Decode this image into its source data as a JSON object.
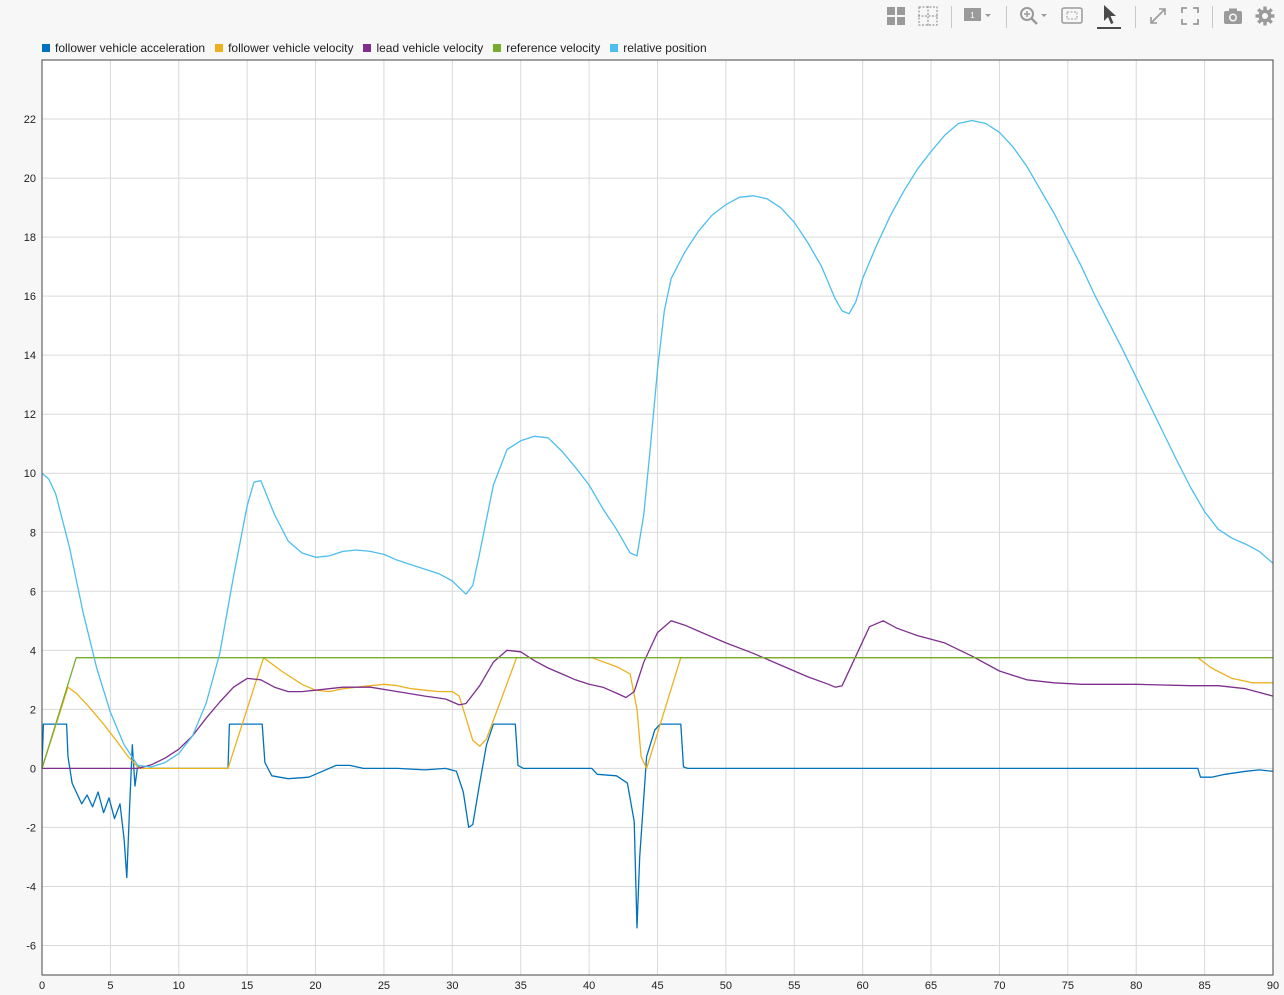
{
  "toolbar": {
    "buttons": [
      {
        "name": "layout-grid-icon"
      },
      {
        "name": "cursor-grid-icon"
      },
      {
        "name": "data-tips-menu-icon",
        "badge": "1"
      },
      {
        "name": "zoom-menu-icon"
      },
      {
        "name": "fit-to-view-icon"
      },
      {
        "name": "select-pointer-icon",
        "active": true
      },
      {
        "name": "expand-arrows-icon"
      },
      {
        "name": "fullscreen-icon"
      },
      {
        "name": "snapshot-camera-icon"
      },
      {
        "name": "settings-gear-icon"
      }
    ]
  },
  "chart_data": {
    "type": "line",
    "title": "",
    "xlabel": "",
    "ylabel": "",
    "xlim": [
      0,
      90
    ],
    "ylim": [
      -7,
      24
    ],
    "xticks": [
      0,
      5,
      10,
      15,
      20,
      25,
      30,
      35,
      40,
      45,
      50,
      55,
      60,
      65,
      70,
      75,
      80,
      85,
      90
    ],
    "yticks": [
      -6,
      -4,
      -2,
      0,
      2,
      4,
      6,
      8,
      10,
      12,
      14,
      16,
      18,
      20,
      22
    ],
    "grid": true,
    "legend_position": "top-left",
    "series": [
      {
        "name": "follower vehicle acceleration",
        "color": "#0072bd",
        "points": [
          [
            0,
            0
          ],
          [
            0.1,
            1.5
          ],
          [
            1.8,
            1.5
          ],
          [
            1.9,
            0.4
          ],
          [
            2.2,
            -0.5
          ],
          [
            2.5,
            -0.8
          ],
          [
            2.9,
            -1.2
          ],
          [
            3.3,
            -0.9
          ],
          [
            3.7,
            -1.3
          ],
          [
            4.1,
            -0.8
          ],
          [
            4.5,
            -1.5
          ],
          [
            4.9,
            -1.0
          ],
          [
            5.3,
            -1.7
          ],
          [
            5.7,
            -1.2
          ],
          [
            6.0,
            -2.4
          ],
          [
            6.2,
            -3.7
          ],
          [
            6.4,
            -1.4
          ],
          [
            6.6,
            0.8
          ],
          [
            6.8,
            -0.6
          ],
          [
            7.0,
            0.1
          ],
          [
            7.2,
            0
          ],
          [
            13.6,
            0
          ],
          [
            13.7,
            1.5
          ],
          [
            16.1,
            1.5
          ],
          [
            16.3,
            0.2
          ],
          [
            16.8,
            -0.25
          ],
          [
            18.0,
            -0.35
          ],
          [
            19.5,
            -0.3
          ],
          [
            20.5,
            -0.1
          ],
          [
            21.5,
            0.1
          ],
          [
            22.5,
            0.1
          ],
          [
            23.5,
            0.0
          ],
          [
            26,
            0.0
          ],
          [
            28,
            -0.05
          ],
          [
            29.5,
            0.0
          ],
          [
            30.3,
            -0.1
          ],
          [
            30.8,
            -0.8
          ],
          [
            31.2,
            -2.0
          ],
          [
            31.5,
            -1.9
          ],
          [
            32.0,
            -0.5
          ],
          [
            32.5,
            0.8
          ],
          [
            33.0,
            1.5
          ],
          [
            34.6,
            1.5
          ],
          [
            34.8,
            0.1
          ],
          [
            35.2,
            0
          ],
          [
            40.2,
            0
          ],
          [
            40.6,
            -0.2
          ],
          [
            42.0,
            -0.25
          ],
          [
            42.8,
            -0.5
          ],
          [
            43.3,
            -1.8
          ],
          [
            43.5,
            -5.4
          ],
          [
            43.7,
            -3.0
          ],
          [
            44.2,
            0.4
          ],
          [
            44.8,
            1.3
          ],
          [
            45.2,
            1.5
          ],
          [
            46.7,
            1.5
          ],
          [
            46.9,
            0.05
          ],
          [
            47.2,
            0
          ],
          [
            84.5,
            0
          ],
          [
            84.7,
            -0.3
          ],
          [
            85.5,
            -0.3
          ],
          [
            86.5,
            -0.2
          ],
          [
            88,
            -0.1
          ],
          [
            89,
            -0.05
          ],
          [
            90,
            -0.1
          ]
        ]
      },
      {
        "name": "follower vehicle velocity",
        "color": "#edb120",
        "points": [
          [
            0,
            0
          ],
          [
            1.9,
            2.75
          ],
          [
            2.5,
            2.55
          ],
          [
            3.5,
            2.05
          ],
          [
            4.5,
            1.5
          ],
          [
            5.5,
            0.9
          ],
          [
            6.3,
            0.4
          ],
          [
            7.0,
            0.05
          ],
          [
            7.3,
            0
          ],
          [
            13.6,
            0
          ],
          [
            16.2,
            3.75
          ],
          [
            17.5,
            3.3
          ],
          [
            19,
            2.85
          ],
          [
            20,
            2.65
          ],
          [
            21,
            2.6
          ],
          [
            22,
            2.7
          ],
          [
            23,
            2.75
          ],
          [
            24,
            2.8
          ],
          [
            25,
            2.85
          ],
          [
            26,
            2.8
          ],
          [
            27,
            2.7
          ],
          [
            28,
            2.65
          ],
          [
            29,
            2.6
          ],
          [
            30,
            2.6
          ],
          [
            30.5,
            2.45
          ],
          [
            31,
            1.7
          ],
          [
            31.5,
            0.95
          ],
          [
            32,
            0.75
          ],
          [
            32.5,
            1.0
          ],
          [
            34.7,
            3.75
          ],
          [
            40.2,
            3.75
          ],
          [
            42,
            3.45
          ],
          [
            43,
            3.2
          ],
          [
            43.5,
            2.0
          ],
          [
            43.8,
            0.4
          ],
          [
            44.2,
            0.0
          ],
          [
            46.7,
            3.75
          ],
          [
            84.5,
            3.75
          ],
          [
            85.5,
            3.4
          ],
          [
            87,
            3.05
          ],
          [
            88.5,
            2.9
          ],
          [
            90,
            2.9
          ]
        ]
      },
      {
        "name": "lead vehicle velocity",
        "color": "#7e2f8e",
        "points": [
          [
            0,
            0
          ],
          [
            7,
            0
          ],
          [
            8,
            0.12
          ],
          [
            9,
            0.35
          ],
          [
            10,
            0.65
          ],
          [
            11,
            1.1
          ],
          [
            12,
            1.7
          ],
          [
            13,
            2.25
          ],
          [
            14,
            2.75
          ],
          [
            15,
            3.05
          ],
          [
            16,
            3.0
          ],
          [
            17,
            2.75
          ],
          [
            18,
            2.6
          ],
          [
            19,
            2.6
          ],
          [
            20,
            2.65
          ],
          [
            21,
            2.7
          ],
          [
            22,
            2.75
          ],
          [
            24,
            2.75
          ],
          [
            26,
            2.6
          ],
          [
            28,
            2.45
          ],
          [
            29.5,
            2.35
          ],
          [
            30.5,
            2.15
          ],
          [
            31,
            2.2
          ],
          [
            32,
            2.8
          ],
          [
            33,
            3.6
          ],
          [
            34,
            4.0
          ],
          [
            35,
            3.95
          ],
          [
            36,
            3.65
          ],
          [
            37,
            3.4
          ],
          [
            38,
            3.2
          ],
          [
            39,
            3.0
          ],
          [
            40,
            2.85
          ],
          [
            41,
            2.75
          ],
          [
            42,
            2.55
          ],
          [
            42.7,
            2.4
          ],
          [
            43.3,
            2.6
          ],
          [
            44,
            3.6
          ],
          [
            45,
            4.6
          ],
          [
            46,
            5.0
          ],
          [
            47,
            4.85
          ],
          [
            48,
            4.65
          ],
          [
            50,
            4.25
          ],
          [
            52,
            3.9
          ],
          [
            54,
            3.5
          ],
          [
            56,
            3.1
          ],
          [
            57.5,
            2.85
          ],
          [
            58,
            2.75
          ],
          [
            58.5,
            2.8
          ],
          [
            59.5,
            3.8
          ],
          [
            60.5,
            4.8
          ],
          [
            61.5,
            5.0
          ],
          [
            62.5,
            4.75
          ],
          [
            64,
            4.5
          ],
          [
            66,
            4.25
          ],
          [
            68,
            3.8
          ],
          [
            70,
            3.3
          ],
          [
            72,
            3.0
          ],
          [
            74,
            2.9
          ],
          [
            76,
            2.85
          ],
          [
            80,
            2.85
          ],
          [
            84,
            2.8
          ],
          [
            86,
            2.8
          ],
          [
            88,
            2.7
          ],
          [
            90,
            2.45
          ]
        ]
      },
      {
        "name": "reference velocity",
        "color": "#77ac30",
        "points": [
          [
            0,
            0
          ],
          [
            2.5,
            3.75
          ],
          [
            90,
            3.75
          ]
        ]
      },
      {
        "name": "relative position",
        "color": "#4dbeee",
        "points": [
          [
            0,
            10.0
          ],
          [
            0.5,
            9.8
          ],
          [
            1,
            9.3
          ],
          [
            2,
            7.5
          ],
          [
            3,
            5.3
          ],
          [
            4,
            3.4
          ],
          [
            5,
            1.9
          ],
          [
            6,
            0.8
          ],
          [
            7,
            0.1
          ],
          [
            8,
            0.05
          ],
          [
            9,
            0.2
          ],
          [
            10,
            0.5
          ],
          [
            11,
            1.1
          ],
          [
            12,
            2.2
          ],
          [
            13,
            3.9
          ],
          [
            14,
            6.5
          ],
          [
            15,
            8.9
          ],
          [
            15.5,
            9.7
          ],
          [
            16,
            9.75
          ],
          [
            17,
            8.6
          ],
          [
            18,
            7.7
          ],
          [
            19,
            7.3
          ],
          [
            20,
            7.15
          ],
          [
            21,
            7.2
          ],
          [
            22,
            7.35
          ],
          [
            23,
            7.4
          ],
          [
            24,
            7.35
          ],
          [
            25,
            7.25
          ],
          [
            26,
            7.05
          ],
          [
            27,
            6.9
          ],
          [
            28,
            6.75
          ],
          [
            29,
            6.6
          ],
          [
            30,
            6.35
          ],
          [
            31,
            5.9
          ],
          [
            31.5,
            6.2
          ],
          [
            32,
            7.3
          ],
          [
            33,
            9.6
          ],
          [
            34,
            10.8
          ],
          [
            35,
            11.1
          ],
          [
            36,
            11.25
          ],
          [
            37,
            11.2
          ],
          [
            38,
            10.75
          ],
          [
            39,
            10.2
          ],
          [
            40,
            9.6
          ],
          [
            41,
            8.8
          ],
          [
            42,
            8.1
          ],
          [
            43,
            7.3
          ],
          [
            43.5,
            7.2
          ],
          [
            44,
            8.6
          ],
          [
            44.5,
            11.0
          ],
          [
            45,
            13.5
          ],
          [
            45.5,
            15.5
          ],
          [
            46,
            16.6
          ],
          [
            47,
            17.5
          ],
          [
            48,
            18.2
          ],
          [
            49,
            18.75
          ],
          [
            50,
            19.1
          ],
          [
            51,
            19.35
          ],
          [
            52,
            19.4
          ],
          [
            53,
            19.3
          ],
          [
            54,
            19.0
          ],
          [
            55,
            18.5
          ],
          [
            56,
            17.8
          ],
          [
            57,
            17.0
          ],
          [
            58,
            15.9
          ],
          [
            58.5,
            15.5
          ],
          [
            59,
            15.4
          ],
          [
            59.5,
            15.8
          ],
          [
            60,
            16.6
          ],
          [
            61,
            17.7
          ],
          [
            62,
            18.7
          ],
          [
            63,
            19.55
          ],
          [
            64,
            20.3
          ],
          [
            65,
            20.9
          ],
          [
            66,
            21.45
          ],
          [
            67,
            21.85
          ],
          [
            68,
            21.95
          ],
          [
            69,
            21.85
          ],
          [
            70,
            21.55
          ],
          [
            71,
            21.05
          ],
          [
            72,
            20.4
          ],
          [
            73,
            19.6
          ],
          [
            74,
            18.8
          ],
          [
            75,
            17.9
          ],
          [
            76,
            17.0
          ],
          [
            77,
            16.0
          ],
          [
            78,
            15.1
          ],
          [
            79,
            14.2
          ],
          [
            80,
            13.25
          ],
          [
            81,
            12.3
          ],
          [
            82,
            11.35
          ],
          [
            83,
            10.4
          ],
          [
            84,
            9.5
          ],
          [
            85,
            8.7
          ],
          [
            86,
            8.1
          ],
          [
            87,
            7.8
          ],
          [
            88,
            7.6
          ],
          [
            89,
            7.35
          ],
          [
            90,
            6.95
          ]
        ]
      }
    ]
  }
}
